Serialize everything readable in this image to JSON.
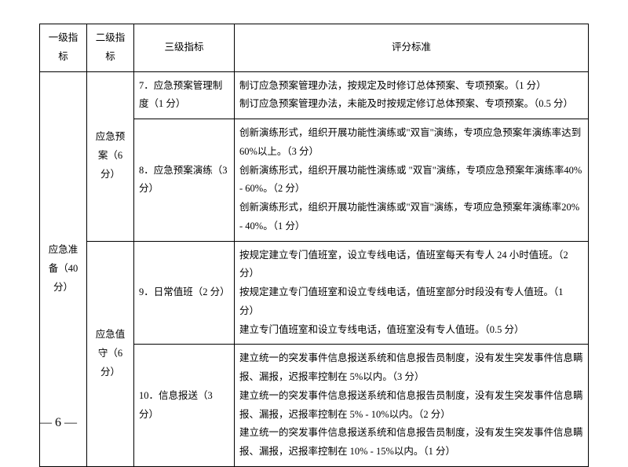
{
  "headers": {
    "col1": "一级指标",
    "col2": "二级指标",
    "col3": "三级指标",
    "col4": "评分标准"
  },
  "level1": {
    "label": "应急准备（40 分）"
  },
  "level2": {
    "a": "应急预案（6 分）",
    "b": "应急值守（6 分）"
  },
  "rows": {
    "r1": {
      "l3": "7．应急预案管理制度（1 分）",
      "criteria": "制订应急预案管理办法，按规定及时修订总体预案、专项预案。（1 分）\n制订应急预案管理办法，未能及时按规定修订总体预案、专项预案。（0.5 分）"
    },
    "r2": {
      "l3": "8．应急预案演练（3 分）",
      "criteria": "创新演练形式，组织开展功能性演练或\"双盲\"演练，专项应急预案年演练率达到 60%以上。（3 分）\n创新演练形式，组织开展功能性演练或 \"双盲\"演练，专项应急预案年演练率40% - 60%。（2 分）\n创新演练形式，组织开展功能性演练或\"双盲\"演练，专项应急预案年演练率20% - 40%。（1 分）"
    },
    "r3": {
      "l3": "9．日常值班（2 分）",
      "criteria": "按规定建立专门值班室，设立专线电话，值班室每天有专人 24 小时值班。（2 分）\n按规定建立专门值班室和设立专线电话，值班室部分时段没有专人值班。（1 分）\n建立专门值班室和设立专线电话，值班室没有专人值班。（0.5 分）"
    },
    "r4": {
      "l3": "10．信息报送（3 分）",
      "criteria": "建立统一的突发事件信息报送系统和信息报告员制度，没有发生突发事件信息瞒报、漏报，迟报率控制在 5%以内。（3 分）\n建立统一的突发事件信息报送系统和信息报告员制度，没有发生突发事件信息瞒报、漏报，迟报率控制在 5% - 10%以内。（2 分）\n建立统一的突发事件信息报送系统和信息报告员制度，没有发生突发事件信息瞒报、漏报，迟报率控制在 10% - 15%以内。（1 分）"
    }
  },
  "pageNumber": "— 6 —"
}
